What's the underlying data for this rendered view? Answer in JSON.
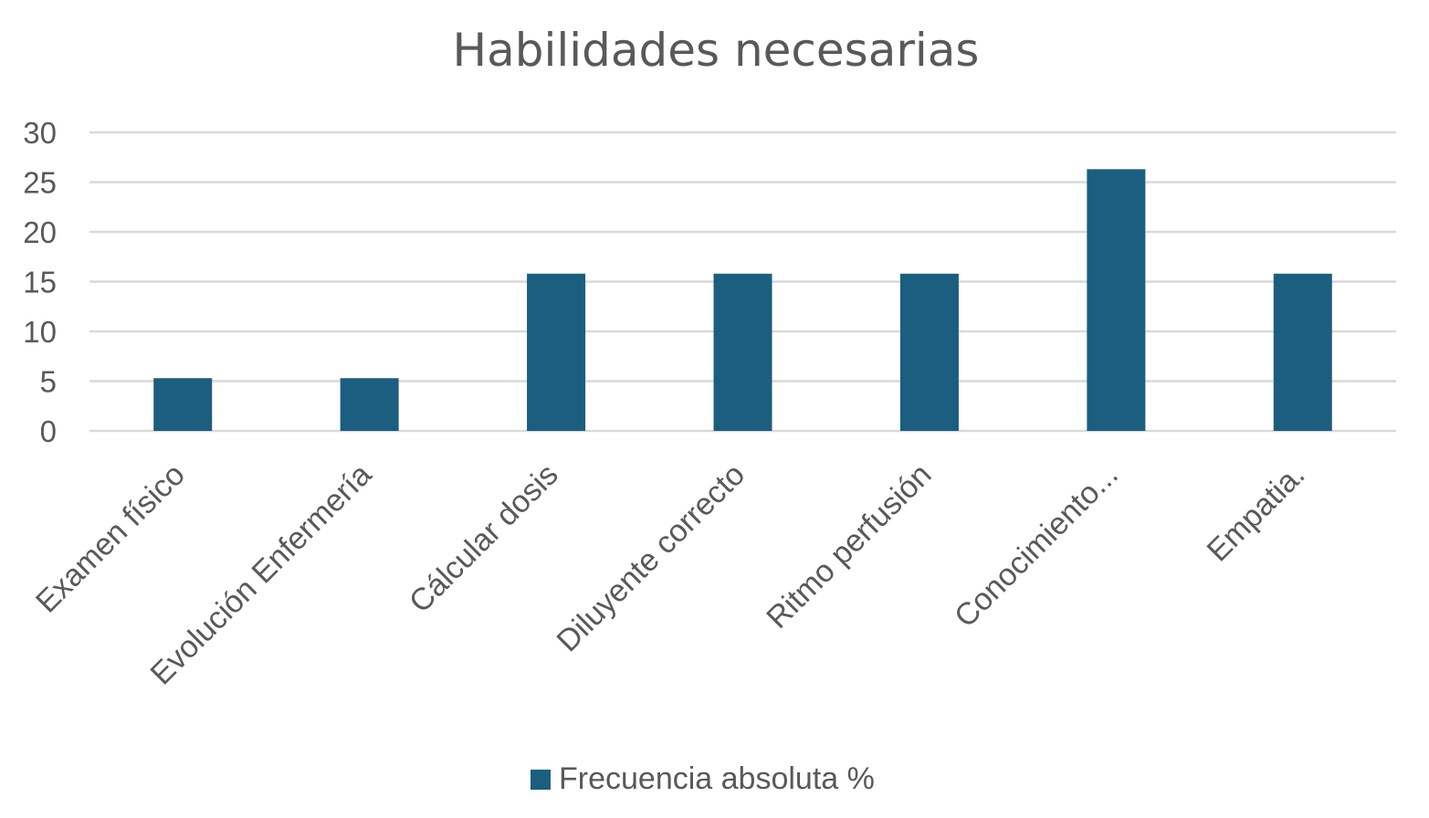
{
  "chart_data": {
    "type": "bar",
    "title": "Habilidades necesarias",
    "xlabel": "",
    "ylabel": "",
    "categories": [
      "Examen físico",
      "Evolución Enfermería",
      "Cálcular dosis",
      "Diluyente correcto",
      "Ritmo perfusión",
      "Conocimiento...",
      "Empatia."
    ],
    "series": [
      {
        "name": "Frecuencia absoluta %",
        "values": [
          5.3,
          5.3,
          15.8,
          15.8,
          15.8,
          26.3,
          15.8
        ],
        "color": "#1b5e7f"
      }
    ],
    "ylim": [
      0,
      30
    ],
    "yticks": [
      "0",
      "5",
      "10",
      "15",
      "20",
      "25",
      "30"
    ],
    "grid": true,
    "legend_position": "bottom"
  }
}
